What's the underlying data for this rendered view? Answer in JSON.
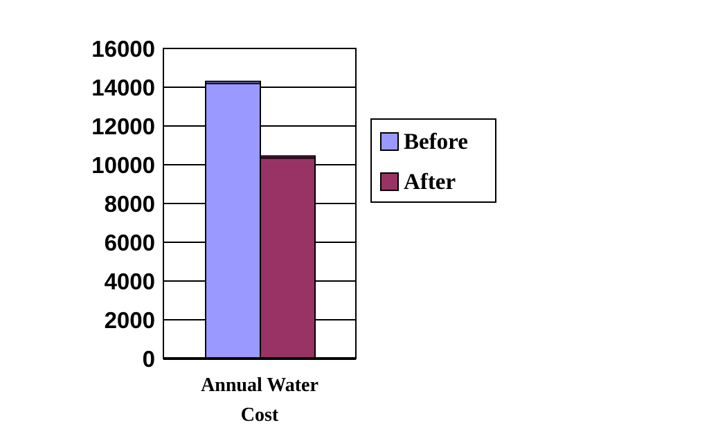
{
  "chart_data": {
    "type": "bar",
    "categories": [
      "Annual Water Cost"
    ],
    "category_label_lines": [
      "Annual Water",
      "Cost"
    ],
    "series": [
      {
        "name": "Before",
        "values": [
          14300
        ],
        "color": "#9999FF"
      },
      {
        "name": "After",
        "values": [
          10450
        ],
        "color": "#993366"
      }
    ],
    "ylim": [
      0,
      16000
    ],
    "yticks": [
      0,
      2000,
      4000,
      6000,
      8000,
      10000,
      12000,
      14000,
      16000
    ],
    "grid": true,
    "legend_position": "right",
    "title": "",
    "xlabel": "",
    "ylabel": ""
  }
}
